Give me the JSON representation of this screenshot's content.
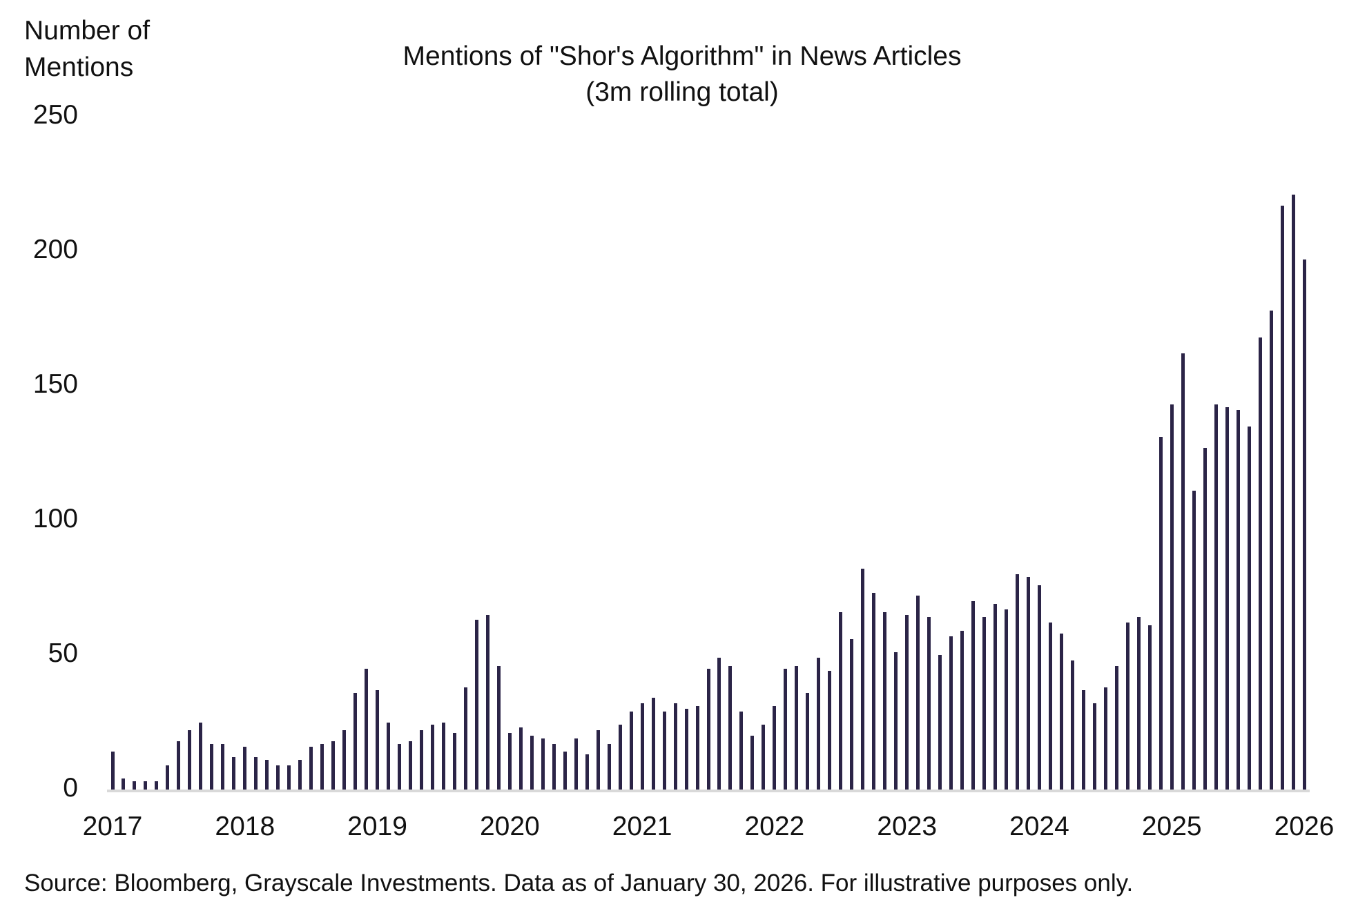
{
  "chart": {
    "title_line1": "Mentions of \"Shor's Algorithm\" in News Articles",
    "title_line2": "(3m rolling total)",
    "ylabel_line1": "Number of",
    "ylabel_line2": "Mentions",
    "source": "Source: Bloomberg, Grayscale Investments. Data as of January 30, 2026. For illustrative purposes only.",
    "bar_color": "#2b2447",
    "axis_color": "#d9d9d9"
  },
  "chart_data": {
    "type": "bar",
    "title": "Mentions of \"Shor's Algorithm\" in News Articles (3m rolling total)",
    "xlabel": "",
    "ylabel": "Number of Mentions",
    "ylim": [
      0,
      250
    ],
    "yticks": [
      0,
      50,
      100,
      150,
      200,
      250
    ],
    "xticks": [
      "2017",
      "2018",
      "2019",
      "2020",
      "2021",
      "2022",
      "2023",
      "2024",
      "2025",
      "2026"
    ],
    "grid": false,
    "legend": null,
    "frequency": "monthly",
    "start": "2017-01",
    "end": "2026-01",
    "categories": [
      "2017-01",
      "2017-02",
      "2017-03",
      "2017-04",
      "2017-05",
      "2017-06",
      "2017-07",
      "2017-08",
      "2017-09",
      "2017-10",
      "2017-11",
      "2017-12",
      "2018-01",
      "2018-02",
      "2018-03",
      "2018-04",
      "2018-05",
      "2018-06",
      "2018-07",
      "2018-08",
      "2018-09",
      "2018-10",
      "2018-11",
      "2018-12",
      "2019-01",
      "2019-02",
      "2019-03",
      "2019-04",
      "2019-05",
      "2019-06",
      "2019-07",
      "2019-08",
      "2019-09",
      "2019-10",
      "2019-11",
      "2019-12",
      "2020-01",
      "2020-02",
      "2020-03",
      "2020-04",
      "2020-05",
      "2020-06",
      "2020-07",
      "2020-08",
      "2020-09",
      "2020-10",
      "2020-11",
      "2020-12",
      "2021-01",
      "2021-02",
      "2021-03",
      "2021-04",
      "2021-05",
      "2021-06",
      "2021-07",
      "2021-08",
      "2021-09",
      "2021-10",
      "2021-11",
      "2021-12",
      "2022-01",
      "2022-02",
      "2022-03",
      "2022-04",
      "2022-05",
      "2022-06",
      "2022-07",
      "2022-08",
      "2022-09",
      "2022-10",
      "2022-11",
      "2022-12",
      "2023-01",
      "2023-02",
      "2023-03",
      "2023-04",
      "2023-05",
      "2023-06",
      "2023-07",
      "2023-08",
      "2023-09",
      "2023-10",
      "2023-11",
      "2023-12",
      "2024-01",
      "2024-02",
      "2024-03",
      "2024-04",
      "2024-05",
      "2024-06",
      "2024-07",
      "2024-08",
      "2024-09",
      "2024-10",
      "2024-11",
      "2024-12",
      "2025-01",
      "2025-02",
      "2025-03",
      "2025-04",
      "2025-05",
      "2025-06",
      "2025-07",
      "2025-08",
      "2025-09",
      "2025-10",
      "2025-11",
      "2025-12",
      "2026-01"
    ],
    "values": [
      14,
      4,
      3,
      3,
      3,
      9,
      18,
      22,
      25,
      17,
      17,
      12,
      16,
      12,
      11,
      9,
      9,
      11,
      16,
      17,
      18,
      22,
      36,
      45,
      37,
      25,
      17,
      18,
      22,
      24,
      25,
      21,
      38,
      63,
      65,
      46,
      21,
      23,
      20,
      19,
      17,
      14,
      19,
      13,
      22,
      17,
      24,
      29,
      32,
      34,
      29,
      32,
      30,
      31,
      45,
      49,
      46,
      29,
      20,
      24,
      31,
      45,
      46,
      36,
      49,
      44,
      66,
      56,
      82,
      73,
      66,
      51,
      65,
      72,
      64,
      50,
      57,
      59,
      70,
      64,
      69,
      67,
      80,
      79,
      76,
      62,
      58,
      48,
      37,
      32,
      38,
      46,
      62,
      64,
      61,
      131,
      143,
      162,
      111,
      127,
      143,
      142,
      141,
      135,
      168,
      178,
      217,
      221,
      197
    ]
  }
}
